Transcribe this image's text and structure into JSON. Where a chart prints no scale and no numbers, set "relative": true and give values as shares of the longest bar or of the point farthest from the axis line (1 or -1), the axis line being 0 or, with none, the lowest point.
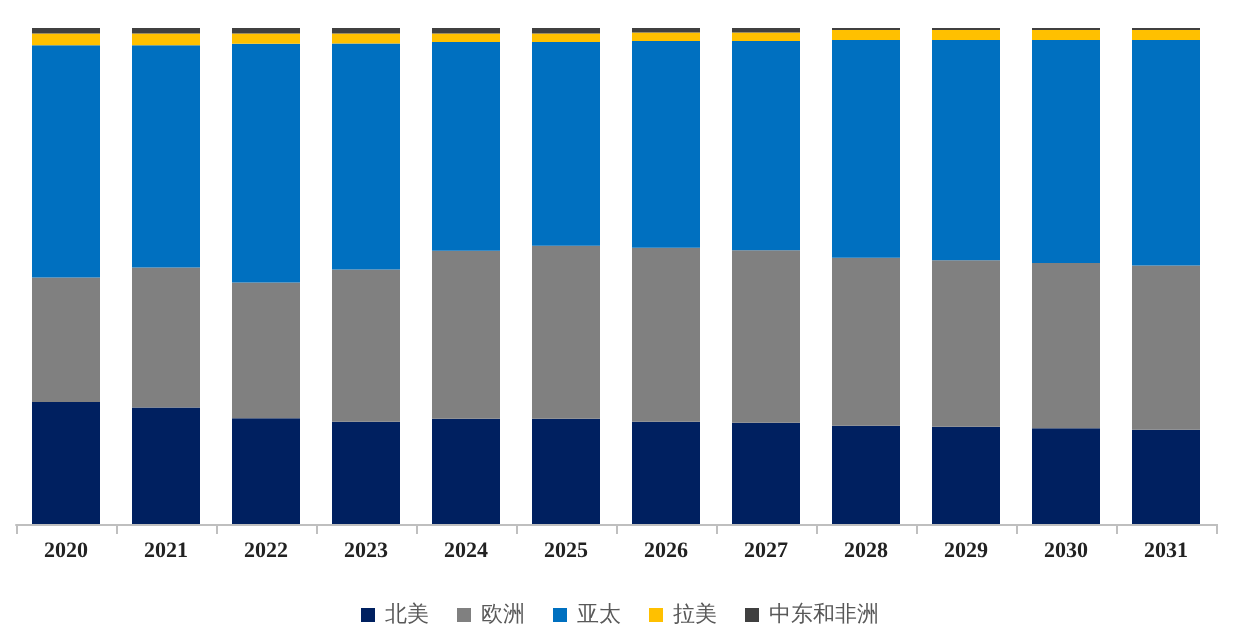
{
  "chart_data": {
    "type": "bar",
    "stacked": true,
    "relative": true,
    "legend": "bottom",
    "categories": [
      "2020",
      "2021",
      "2022",
      "2023",
      "2024",
      "2025",
      "2026",
      "2027",
      "2028",
      "2029",
      "2030",
      "2031"
    ],
    "series": [
      {
        "name": "北美",
        "color": "#002060",
        "values": [
          0.246,
          0.235,
          0.213,
          0.206,
          0.212,
          0.212,
          0.206,
          0.204,
          0.198,
          0.196,
          0.193,
          0.19
        ]
      },
      {
        "name": "欧洲",
        "color": "#808080",
        "values": [
          0.251,
          0.282,
          0.274,
          0.307,
          0.339,
          0.349,
          0.351,
          0.348,
          0.339,
          0.336,
          0.333,
          0.331
        ]
      },
      {
        "name": "亚太",
        "color": "#0070c0",
        "values": [
          0.468,
          0.448,
          0.481,
          0.456,
          0.421,
          0.411,
          0.417,
          0.422,
          0.439,
          0.444,
          0.45,
          0.455
        ]
      },
      {
        "name": "拉美",
        "color": "#ffc000",
        "values": [
          0.024,
          0.024,
          0.021,
          0.02,
          0.017,
          0.017,
          0.017,
          0.017,
          0.02,
          0.02,
          0.02,
          0.02
        ]
      },
      {
        "name": "中东和非洲",
        "color": "#404040",
        "values": [
          0.011,
          0.011,
          0.011,
          0.011,
          0.011,
          0.011,
          0.009,
          0.009,
          0.004,
          0.004,
          0.004,
          0.004
        ]
      }
    ]
  }
}
